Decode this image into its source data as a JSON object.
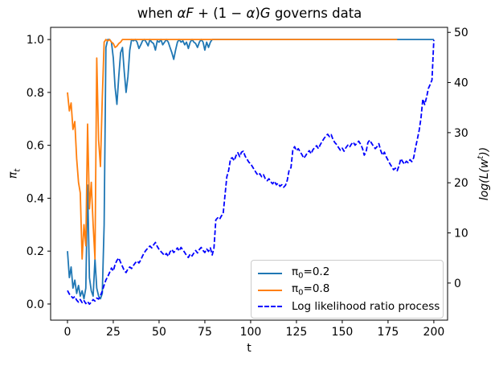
{
  "figure": {
    "title_segments": [
      {
        "text": "when ",
        "italic": false
      },
      {
        "text": "αF",
        "italic": true
      },
      {
        "text": " + (1 − ",
        "italic": false
      },
      {
        "text": "α",
        "italic": true
      },
      {
        "text": ")",
        "italic": false
      },
      {
        "text": "G",
        "italic": true
      },
      {
        "text": " governs data",
        "italic": false
      }
    ]
  },
  "axes": {
    "xlabel": "t",
    "ylabel_left": {
      "base": "π",
      "sub": "t"
    },
    "ylabel_right": {
      "pre": "log(L(w",
      "sup": "t",
      "post": "))"
    }
  },
  "colors": {
    "series_pi02": "#1f77b4",
    "series_pi08": "#ff7f0e",
    "series_llr": "#0000ff",
    "spine": "#000000",
    "legend_border": "#cccccc",
    "text": "#000000"
  },
  "legend": {
    "entries": [
      {
        "slug": "pi0-0.2",
        "base": "π",
        "sub": "0",
        "rest": "=0.2",
        "color": "#1f77b4",
        "style": "solid"
      },
      {
        "slug": "pi0-0.8",
        "base": "π",
        "sub": "0",
        "rest": "=0.8",
        "color": "#ff7f0e",
        "style": "solid"
      },
      {
        "slug": "log-likelihood-ratio",
        "base": "Log likelihood ratio process",
        "sub": "",
        "rest": "",
        "color": "#0000ff",
        "style": "dashed"
      }
    ]
  },
  "chart_data": {
    "type": "line",
    "title": "when αF + (1 − α)G governs data",
    "xlabel": "t",
    "ylabel_left": "π_t",
    "ylabel_right": "log(L(w^t))",
    "xlim": [
      -9.2,
      207.5
    ],
    "ylim_left": [
      -0.061,
      1.046
    ],
    "ylim_right": [
      -7.4,
      51.0
    ],
    "xticks": {
      "values": [
        0,
        25,
        50,
        75,
        100,
        125,
        150,
        175,
        200
      ],
      "labels": [
        "0",
        "25",
        "50",
        "75",
        "100",
        "125",
        "150",
        "175",
        "200"
      ]
    },
    "yticks_left": {
      "values": [
        0.0,
        0.2,
        0.4,
        0.6,
        0.8,
        1.0
      ],
      "labels": [
        "0.0",
        "0.2",
        "0.4",
        "0.6",
        "0.8",
        "1.0"
      ]
    },
    "yticks_right": {
      "values": [
        0,
        10,
        20,
        30,
        40,
        50
      ],
      "labels": [
        "0",
        "10",
        "20",
        "30",
        "40",
        "50"
      ]
    },
    "x_start": 0,
    "x_step": 1,
    "series": [
      {
        "name": "π0=0.2",
        "slug": "pi0-0.2-line",
        "axis": "left",
        "color": "#1f77b4",
        "style": "solid",
        "values": [
          0.2,
          0.1,
          0.14,
          0.06,
          0.09,
          0.04,
          0.07,
          0.03,
          0.05,
          0.02,
          0.06,
          0.45,
          0.1,
          0.05,
          0.03,
          0.17,
          0.06,
          0.03,
          0.02,
          0.04,
          0.3,
          0.97,
          1,
          1,
          0.99,
          0.93,
          0.82,
          0.755,
          0.86,
          0.95,
          0.97,
          0.88,
          0.8,
          0.86,
          0.96,
          1,
          0.995,
          1,
          0.99,
          0.966,
          0.98,
          0.995,
          1,
          0.99,
          0.976,
          1,
          0.99,
          0.985,
          0.96,
          0.995,
          0.99,
          1,
          0.98,
          0.99,
          1,
          0.99,
          0.97,
          0.95,
          0.925,
          0.96,
          0.99,
          1,
          0.99,
          0.995,
          0.98,
          0.99,
          0.966,
          0.99,
          1,
          0.99,
          0.985,
          0.97,
          0.99,
          1,
          0.99,
          0.96,
          0.99,
          0.97,
          0.99,
          1,
          1,
          1,
          1,
          1,
          1,
          1,
          1,
          1,
          1,
          1,
          1,
          1,
          1,
          1,
          1,
          1,
          1,
          1,
          1,
          1,
          1,
          1,
          1,
          1,
          1,
          1,
          1,
          1,
          1,
          1,
          1,
          1,
          1,
          1,
          1,
          1,
          1,
          1,
          1,
          1,
          1,
          1,
          1,
          1,
          1,
          1,
          1,
          1,
          1,
          1,
          1,
          1,
          1,
          1,
          1,
          1,
          1,
          1,
          1,
          1,
          1,
          1,
          1,
          1,
          1,
          1,
          1,
          1,
          1,
          1,
          1,
          1,
          1,
          1,
          1,
          1,
          1,
          1,
          1,
          1,
          1,
          1,
          1,
          1,
          1,
          1,
          1,
          1,
          1,
          1,
          1,
          1,
          1,
          1,
          1,
          1,
          1,
          1,
          1,
          1,
          1,
          1,
          1,
          1,
          1,
          1,
          1,
          1,
          1,
          1,
          1,
          1,
          1,
          1,
          1,
          1,
          1,
          1,
          1,
          1,
          1
        ]
      },
      {
        "name": "π0=0.8",
        "slug": "pi0-0.8-line",
        "axis": "left",
        "color": "#ff7f0e",
        "style": "solid",
        "values": [
          0.8,
          0.73,
          0.76,
          0.66,
          0.69,
          0.55,
          0.46,
          0.42,
          0.17,
          0.3,
          0.22,
          0.68,
          0.36,
          0.46,
          0.3,
          0.17,
          0.93,
          0.62,
          0.52,
          0.78,
          0.99,
          1,
          0.995,
          1,
          0.99,
          0.985,
          0.97,
          0.975,
          0.985,
          0.99,
          1,
          1,
          1,
          1,
          1,
          1,
          1,
          1,
          1,
          1,
          1,
          1,
          1,
          1,
          1,
          1,
          1,
          1,
          1,
          1,
          1,
          1,
          1,
          1,
          1,
          1,
          1,
          1,
          1,
          1,
          1,
          1,
          1,
          1,
          1,
          1,
          1,
          1,
          1,
          1,
          1,
          1,
          1,
          1,
          1,
          1,
          1,
          1,
          1,
          1,
          1,
          1,
          1,
          1,
          1,
          1,
          1,
          1,
          1,
          1,
          1,
          1,
          1,
          1,
          1,
          1,
          1,
          1,
          1,
          1,
          1,
          1,
          1,
          1,
          1,
          1,
          1,
          1,
          1,
          1,
          1,
          1,
          1,
          1,
          1,
          1,
          1,
          1,
          1,
          1,
          1,
          1,
          1,
          1,
          1,
          1,
          1,
          1,
          1,
          1,
          1,
          1,
          1,
          1,
          1,
          1,
          1,
          1,
          1,
          1,
          1,
          1,
          1,
          1,
          1,
          1,
          1,
          1,
          1,
          1,
          1,
          1,
          1,
          1,
          1,
          1,
          1,
          1,
          1,
          1,
          1,
          1,
          1,
          1,
          1,
          1,
          1,
          1,
          1,
          1,
          1,
          1,
          1,
          1,
          1,
          1,
          1,
          1,
          1,
          1,
          1
        ]
      },
      {
        "name": "Log likelihood ratio process",
        "slug": "log-likelihood-ratio-line",
        "axis": "right",
        "color": "#0000ff",
        "style": "dashed",
        "values": [
          -1.5,
          -2.2,
          -2.6,
          -3.0,
          -2.7,
          -3.4,
          -3.8,
          -3.3,
          -3.9,
          -3.5,
          -4.1,
          -3.7,
          -4.2,
          -3.8,
          -3.3,
          -3.6,
          -3.0,
          -3.2,
          -2.5,
          -1.6,
          -0.4,
          0.6,
          1.3,
          2.1,
          3.0,
          2.4,
          3.7,
          4.5,
          5.0,
          4.1,
          3.3,
          2.5,
          2.1,
          2.8,
          3.2,
          2.9,
          3.5,
          4.0,
          4.4,
          4.0,
          4.6,
          5.4,
          6.1,
          6.6,
          7.0,
          7.4,
          7.0,
          7.6,
          8.1,
          7.3,
          6.7,
          6.3,
          5.9,
          5.5,
          5.9,
          5.3,
          6.2,
          6.7,
          6.1,
          6.5,
          7.0,
          6.4,
          7.1,
          6.6,
          6.1,
          5.5,
          5.1,
          5.8,
          5.4,
          6.0,
          6.5,
          6.0,
          6.7,
          7.1,
          6.5,
          6.1,
          6.8,
          6.3,
          7.0,
          5.6,
          7.0,
          12.6,
          13.0,
          12.7,
          13.4,
          13.8,
          17.5,
          21.2,
          22.5,
          24.8,
          25.0,
          24.4,
          25.4,
          26.0,
          25.2,
          26.1,
          26.3,
          25.3,
          24.7,
          24.1,
          23.8,
          23.2,
          22.6,
          22.0,
          21.5,
          21.8,
          21.2,
          21.6,
          20.8,
          20.4,
          20.8,
          20.2,
          19.8,
          20.3,
          19.6,
          19.9,
          19.3,
          19.6,
          19.1,
          19.5,
          20.5,
          22.5,
          23.0,
          26.5,
          27.2,
          26.4,
          26.8,
          26.2,
          25.6,
          24.9,
          25.4,
          26.0,
          26.4,
          25.8,
          26.6,
          27.0,
          27.4,
          26.8,
          27.6,
          28.2,
          28.8,
          29.3,
          29.7,
          29.2,
          29.6,
          28.6,
          28.0,
          27.6,
          27.0,
          26.5,
          26.9,
          26.3,
          27.0,
          27.5,
          27.1,
          27.7,
          28.1,
          27.5,
          27.9,
          28.3,
          27.7,
          26.9,
          25.5,
          26.2,
          28.0,
          28.5,
          27.9,
          27.3,
          26.8,
          27.2,
          27.8,
          26.4,
          25.5,
          26.1,
          25.2,
          24.5,
          23.8,
          23.2,
          22.6,
          22.9,
          22.4,
          23.4,
          24.8,
          24.2,
          23.7,
          24.3,
          24.0,
          24.6,
          24.2,
          25.0,
          27.0,
          28.7,
          30.5,
          32.9,
          36.7,
          35.6,
          37.0,
          38.8,
          39.6,
          40.5,
          48.5
        ]
      }
    ],
    "legend_position": "lower right (inside axes)",
    "grid": false
  }
}
